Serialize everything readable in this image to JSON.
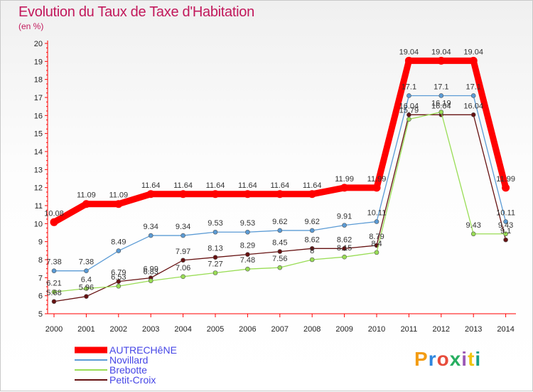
{
  "chart_data": {
    "type": "line",
    "title": "Evolution du Taux de Taxe d'Habitation",
    "ylabel": "(en %)",
    "xlabel": "",
    "ylim": [
      5,
      20
    ],
    "yticks": [
      5,
      6,
      7,
      8,
      9,
      10,
      11,
      12,
      13,
      14,
      15,
      16,
      17,
      18,
      19,
      20
    ],
    "grid": false,
    "legend_position": "bottom-left",
    "x": [
      2000,
      2001,
      2002,
      2003,
      2004,
      2005,
      2006,
      2007,
      2008,
      2009,
      2010,
      2011,
      2012,
      2013,
      2014
    ],
    "series": [
      {
        "name": "AUTRECHêNE",
        "color": "#ff0000",
        "values": [
          10.08,
          11.09,
          11.09,
          11.64,
          11.64,
          11.64,
          11.64,
          11.64,
          11.64,
          11.99,
          11.99,
          19.04,
          19.04,
          19.04,
          11.99
        ]
      },
      {
        "name": "Novillard",
        "color": "#5b9bd5",
        "values": [
          7.38,
          7.38,
          8.49,
          9.34,
          9.34,
          9.53,
          9.53,
          9.62,
          9.62,
          9.91,
          10.11,
          17.1,
          17.1,
          17.1,
          10.11
        ]
      },
      {
        "name": "Brebotte",
        "color": "#99dd55",
        "values": [
          6.21,
          6.4,
          6.53,
          6.83,
          7.06,
          7.27,
          7.48,
          7.56,
          8,
          8.15,
          8.4,
          15.79,
          16.19,
          9.43,
          9.43
        ]
      },
      {
        "name": "Petit-Croix",
        "color": "#661111",
        "values": [
          5.68,
          5.96,
          6.79,
          6.99,
          7.97,
          8.13,
          8.29,
          8.45,
          8.62,
          8.62,
          8.79,
          16.04,
          16.04,
          16.04,
          9.1
        ]
      }
    ]
  },
  "logo": {
    "text": "Proxiti"
  }
}
